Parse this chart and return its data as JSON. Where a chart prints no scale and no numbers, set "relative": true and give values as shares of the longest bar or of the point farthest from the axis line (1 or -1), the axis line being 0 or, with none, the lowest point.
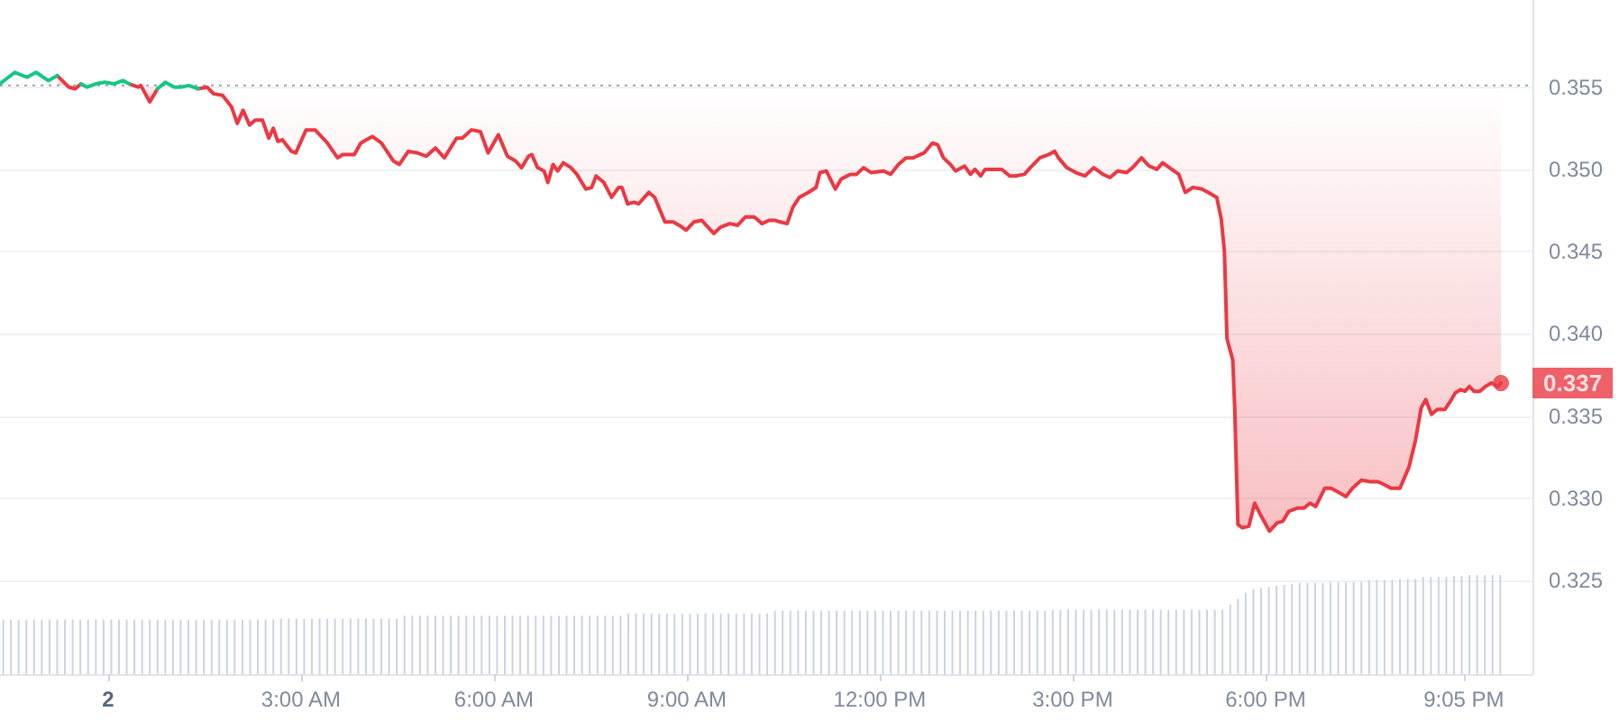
{
  "chart_data": [
    {
      "type": "line",
      "series": [
        {
          "color": "#ea3943",
          "x": [
            -0.79,
            -0.61,
            -0.51,
            -0.42,
            -0.33,
            0.33,
            0.47,
            0.51,
            0.65,
            0.77,
            0.89,
            1.4,
            1.54,
            1.64,
            1.78,
            1.92,
            2.01,
            2.1,
            2.2,
            2.29,
            2.4,
            2.5,
            2.57,
            2.64,
            2.71,
            2.85,
            2.92,
            3.08,
            3.22,
            3.41,
            3.57,
            3.65,
            3.83,
            3.93,
            4.02,
            4.11,
            4.25,
            4.44,
            4.53,
            4.67,
            4.81,
            4.95,
            5.09,
            5.23,
            5.42,
            5.51,
            5.65,
            5.79,
            5.91,
            6.07,
            6.21,
            6.34,
            6.43,
            6.54,
            6.59,
            6.68,
            6.78,
            6.84,
            6.92,
            6.99,
            7.08,
            7.2,
            7.29,
            7.43,
            7.52,
            7.59,
            7.71,
            7.83,
            7.94,
            7.99,
            8.08,
            8.18,
            8.25,
            8.41,
            8.5,
            8.66,
            8.79,
            8.88,
            8.99,
            9.11,
            9.23,
            9.42,
            9.53,
            9.67,
            9.79,
            9.91,
            10.05,
            10.17,
            10.28,
            10.37,
            10.45,
            10.56,
            10.65,
            10.75,
            10.89,
            11.01,
            11.07,
            11.17,
            11.31,
            11.4,
            11.54,
            11.64,
            11.75,
            11.87,
            12.06,
            12.17,
            12.29,
            12.41,
            12.52,
            12.69,
            12.82,
            12.9,
            12.99,
            13.1,
            13.18,
            13.32,
            13.41,
            13.48,
            13.57,
            13.64,
            13.78,
            13.9,
            14.02,
            14.11,
            14.25,
            14.34,
            14.49,
            14.63,
            14.72,
            14.78,
            14.91,
            15.05,
            15.19,
            15.33,
            15.47,
            15.58,
            15.7,
            15.84,
            15.93,
            16.07,
            16.19,
            16.31,
            16.4,
            16.54,
            16.65,
            16.75,
            16.87,
            17.01,
            17.15,
            17.24,
            17.31,
            17.36,
            17.4,
            17.49,
            17.52,
            17.57,
            17.64,
            17.74,
            17.83,
            17.92,
            18.06,
            18.18,
            18.27,
            18.36,
            18.5,
            18.6,
            18.69,
            18.78,
            18.92,
            19.02,
            19.16,
            19.25,
            19.35,
            19.49,
            19.63,
            19.75,
            19.86,
            19.95,
            20.09,
            20.23,
            20.33,
            20.42,
            20.49,
            20.58,
            20.67,
            20.79,
            20.89,
            20.95,
            21.03,
            21.1,
            21.17,
            21.24,
            21.33,
            21.42,
            21.51,
            21.61,
            21.66
          ],
          "values": [
            0.3557,
            0.355,
            0.3549,
            0.3552,
            null,
            0.3552,
            0.355,
            0.3551,
            0.3541,
            0.3549,
            null,
            0.3549,
            0.355,
            0.3546,
            0.3545,
            0.3538,
            0.3528,
            0.3536,
            0.3527,
            0.353,
            0.353,
            0.3519,
            0.3525,
            0.3517,
            0.3518,
            0.3511,
            0.351,
            0.3524,
            0.3524,
            0.3516,
            0.3507,
            0.3509,
            0.3509,
            0.3516,
            0.3518,
            0.352,
            0.3516,
            0.3505,
            0.3503,
            0.3511,
            0.351,
            0.3508,
            0.3513,
            0.3507,
            0.3519,
            0.3519,
            0.3524,
            0.3523,
            0.351,
            0.3521,
            0.3508,
            0.3505,
            0.3501,
            0.3508,
            0.3509,
            0.3501,
            0.3499,
            0.3492,
            0.3503,
            0.3499,
            0.3504,
            0.3501,
            0.3497,
            0.3488,
            0.3489,
            0.3496,
            0.3492,
            0.3483,
            0.3489,
            0.3489,
            0.3479,
            0.348,
            0.3479,
            0.3486,
            0.3483,
            0.3468,
            0.3468,
            0.3466,
            0.3463,
            0.3468,
            0.3469,
            0.3461,
            0.3465,
            0.3467,
            0.3466,
            0.3471,
            0.3471,
            0.3467,
            0.3469,
            0.3469,
            0.3468,
            0.3467,
            0.3477,
            0.3483,
            0.3486,
            0.3489,
            0.3498,
            0.3499,
            0.3488,
            0.3494,
            0.3497,
            0.3497,
            0.3501,
            0.3498,
            0.3499,
            0.3497,
            0.3503,
            0.3507,
            0.3507,
            0.351,
            0.3516,
            0.3515,
            0.3507,
            0.3503,
            0.3499,
            0.3502,
            0.3497,
            0.35,
            0.3496,
            0.35,
            0.35,
            0.35,
            0.3496,
            0.3496,
            0.3497,
            0.3501,
            0.3507,
            0.3509,
            0.3511,
            0.3507,
            0.3501,
            0.3498,
            0.3496,
            0.3501,
            0.3497,
            0.3495,
            0.3499,
            0.3498,
            0.3501,
            0.3507,
            0.3502,
            0.35,
            0.3504,
            0.35,
            0.3497,
            0.3486,
            0.3489,
            0.3488,
            0.3485,
            0.3483,
            0.347,
            0.345,
            0.3397,
            0.3384,
            0.3355,
            0.3284,
            0.3282,
            0.3283,
            0.3297,
            0.329,
            0.328,
            0.3285,
            0.3286,
            0.3292,
            0.3294,
            0.3294,
            0.3297,
            0.3295,
            0.3306,
            0.3306,
            0.3303,
            0.3301,
            0.3306,
            0.3311,
            0.331,
            0.331,
            0.3308,
            0.3306,
            0.3306,
            0.3319,
            0.3335,
            0.3355,
            0.336,
            0.3351,
            0.3354,
            0.3354,
            0.336,
            0.3364,
            0.3366,
            0.3365,
            0.3368,
            0.3365,
            0.3365,
            0.3368,
            0.337,
            0.3368,
            0.337
          ],
          "lower": [
            0.3557,
            0.355,
            0.3549,
            0.3552,
            null,
            0.3552,
            0.355,
            0.3551,
            0.3541,
            0.3549,
            null,
            0.3549,
            0.355,
            0.3546,
            0.3545,
            0.3538,
            0.3528,
            0.3536,
            0.3527,
            0.353,
            0.353,
            0.3519,
            0.3525,
            0.3517,
            0.3518,
            0.3511,
            0.351,
            0.3524,
            0.3524,
            0.3516,
            0.3507,
            0.3509,
            0.3509,
            0.3516,
            0.3518,
            0.352,
            0.3516,
            0.3505,
            0.3503,
            0.3511,
            0.351,
            0.3508,
            0.3513,
            0.3507,
            0.3519,
            0.3519,
            0.3524,
            0.3523,
            0.351,
            0.3521,
            0.3508,
            0.3505,
            0.3501,
            0.3508,
            0.3509,
            0.3501,
            0.3499,
            0.3492,
            0.3503,
            0.3499,
            0.3504,
            0.3501,
            0.3497,
            0.3488,
            0.3489,
            0.3496,
            0.3492,
            0.3483,
            0.3489,
            0.3489,
            0.3479,
            0.348,
            0.3479,
            0.3486,
            0.3483,
            0.3468,
            0.3468,
            0.3466,
            0.3463,
            0.3468,
            0.3469,
            0.3461,
            0.3465,
            0.3467,
            0.3466,
            0.3471,
            0.3471,
            0.3467,
            0.3469,
            0.3469,
            0.3468,
            0.3467,
            0.3477,
            0.3483,
            0.3486,
            0.3489,
            0.3498,
            0.3499,
            0.3488,
            0.3494,
            0.3497,
            0.3497,
            0.3501,
            0.3498,
            0.3499,
            0.3497,
            0.3503,
            0.3507,
            0.3507,
            0.351,
            0.3516,
            0.3515,
            0.3507,
            0.3503,
            0.3499,
            0.3502,
            0.3497,
            0.35,
            0.3496,
            0.35,
            0.35,
            0.35,
            0.3496,
            0.3496,
            0.3497,
            0.3501,
            0.3507,
            0.3509,
            0.3511,
            0.3507,
            0.3501,
            0.3498,
            0.3496,
            0.3501,
            0.3497,
            0.3495,
            0.3499,
            0.3498,
            0.3501,
            0.3507,
            0.3502,
            0.35,
            0.3504,
            0.35,
            0.3497,
            0.3486,
            0.3489,
            0.3488,
            0.3485,
            0.3483,
            0.347,
            0.345,
            0.3397,
            0.3384,
            0.3355,
            0.3284,
            0.3282,
            0.3283,
            0.3297,
            0.329,
            0.328,
            0.3285,
            0.3286,
            0.3292,
            0.3294,
            0.3294,
            0.3297,
            0.3295,
            0.3306,
            0.3306,
            0.3303,
            0.3301,
            0.3306,
            0.3311,
            0.331,
            0.331,
            0.3308,
            0.3306,
            0.3306,
            0.3319,
            0.3335,
            0.3355,
            0.336,
            0.3351,
            0.3354,
            0.3354,
            0.336,
            0.3364,
            0.3366,
            0.3365,
            0.3368,
            0.3365,
            0.3365,
            0.3368,
            0.337,
            0.3368,
            0.337
          ],
          "upper": [
            0.3551,
            0.3551,
            0.3551,
            0.3551,
            null,
            0.3551,
            0.3551,
            0.3551,
            0.3551,
            0.3551,
            null,
            0.3551,
            0.3551,
            0.3551,
            0.3551,
            0.3551,
            0.3551,
            0.3551,
            0.3551,
            0.3551,
            0.3551,
            0.3551,
            0.3551,
            0.3551,
            0.3551,
            0.3551,
            0.3551,
            0.3551,
            0.3551,
            0.3551,
            0.3551,
            0.3551,
            0.3551,
            0.3551,
            0.3551,
            0.3551,
            0.3551,
            0.3551,
            0.3551,
            0.3551,
            0.3551,
            0.3551,
            0.3551,
            0.3551,
            0.3551,
            0.3551,
            0.3551,
            0.3551,
            0.3551,
            0.3551,
            0.3551,
            0.3551,
            0.3551,
            0.3551,
            0.3551,
            0.3551,
            0.3551,
            0.3551,
            0.3551,
            0.3551,
            0.3551,
            0.3551,
            0.3551,
            0.3551,
            0.3551,
            0.3551,
            0.3551,
            0.3551,
            0.3551,
            0.3551,
            0.3551,
            0.3551,
            0.3551,
            0.3551,
            0.3551,
            0.3551,
            0.3551,
            0.3551,
            0.3551,
            0.3551,
            0.3551,
            0.3551,
            0.3551,
            0.3551,
            0.3551,
            0.3551,
            0.3551,
            0.3551,
            0.3551,
            0.3551,
            0.3551,
            0.3551,
            0.3551,
            0.3551,
            0.3551,
            0.3551,
            0.3551,
            0.3551,
            0.3551,
            0.3551,
            0.3551,
            0.3551,
            0.3551,
            0.3551,
            0.3551,
            0.3551,
            0.3551,
            0.3551,
            0.3551,
            0.3551,
            0.3551,
            0.3551,
            0.3551,
            0.3551,
            0.3551,
            0.3551,
            0.3551,
            0.3551,
            0.3551,
            0.3551,
            0.3551,
            0.3551,
            0.3551,
            0.3551,
            0.3551,
            0.3551,
            0.3551,
            0.3551,
            0.3551,
            0.3551,
            0.3551,
            0.3551,
            0.3551,
            0.3551,
            0.3551,
            0.3551,
            0.3551,
            0.3551,
            0.3551,
            0.3551,
            0.3551,
            0.3551,
            0.3551,
            0.3551,
            0.3551,
            0.3551,
            0.3551,
            0.3551,
            0.3551,
            0.3551,
            0.3551,
            0.3551,
            0.3551,
            0.3551,
            0.3551,
            0.3551,
            0.3551,
            0.3551,
            0.3551,
            0.3551,
            0.3551,
            0.3551,
            0.3551,
            0.3551,
            0.3551,
            0.3551,
            0.3551,
            0.3551,
            0.3551,
            0.3551,
            0.3551,
            0.3551,
            0.3551,
            0.3551,
            0.3551,
            0.3551,
            0.3551,
            0.3551,
            0.3551,
            0.3551,
            0.3551,
            0.3551,
            0.3551,
            0.3551,
            0.3551,
            0.3551,
            0.3551,
            0.3551,
            0.3551,
            0.3551,
            0.3551,
            0.3551,
            0.3551,
            0.3551,
            0.3551,
            0.3551,
            0.3551
          ]
        },
        {
          "color": "#16c784",
          "x": [
            -1.68,
            -1.45,
            -1.26,
            -1.12,
            -0.93,
            -0.79,
            -0.61,
            -0.42,
            -0.33,
            -0.19,
            -0.05,
            0.09,
            0.23,
            0.33,
            0.47,
            0.77,
            0.89,
            1.03,
            1.12,
            1.26,
            1.4
          ],
          "values": [
            0.3552,
            0.3559,
            0.3556,
            0.3559,
            0.3554,
            0.3557,
            null,
            0.3552,
            0.355,
            0.3552,
            0.3553,
            0.3552,
            0.3554,
            0.3552,
            null,
            0.3549,
            0.3553,
            0.355,
            0.355,
            0.3551,
            0.3549
          ]
        },
        {
          "type": "scatter",
          "color": "#ea3943",
          "x": [
            21.66
          ],
          "values": [
            0.337
          ],
          "value_labels": [
            "0.337"
          ]
        }
      ],
      "xlim": [
        -1.68,
        22.15
      ],
      "xticks": [
        {
          "value": 0,
          "label": null
        },
        {
          "value": 3,
          "label": "3:00 AM"
        },
        {
          "value": 6,
          "label": "6:00 AM"
        },
        {
          "value": 9,
          "label": "9:00 AM"
        },
        {
          "value": 12,
          "label": "12:00 PM"
        },
        {
          "value": 15,
          "label": "3:00 PM"
        },
        {
          "value": 18,
          "label": "6:00 PM"
        },
        {
          "value": 21.083,
          "label": "9:05 PM"
        }
      ],
      "annotations": [
        "2"
      ],
      "ylim": [
        0.3193,
        0.3603
      ],
      "yticks": [
        0.325,
        {
          "value": 0.33,
          "label": "0.330"
        },
        0.335,
        {
          "value": 0.34,
          "label": "0.340"
        },
        0.345,
        {
          "value": 0.35,
          "label": "0.350"
        },
        0.355
      ],
      "ref_lines": [
        {
          "axis": "y",
          "value": 0.3551,
          "color": "#9aa3b5",
          "line_style": "dotted"
        }
      ],
      "grid": "y"
    },
    {
      "type": "bar",
      "relative": true,
      "color": "#cbd3e3",
      "x": [
        -1.63,
        -1.51,
        -1.39,
        -1.27,
        -1.15,
        -1.03,
        -0.91,
        -0.79,
        -0.67,
        -0.55,
        -0.43,
        -0.31,
        -0.19,
        -0.07,
        0.05,
        0.17,
        0.29,
        0.41,
        0.53,
        0.65,
        0.77,
        0.89,
        1.01,
        1.13,
        1.25,
        1.37,
        1.49,
        1.61,
        1.73,
        1.85,
        1.97,
        2.09,
        2.21,
        2.33,
        2.45,
        2.57,
        2.69,
        2.81,
        2.93,
        3.05,
        3.17,
        3.29,
        3.41,
        3.53,
        3.65,
        3.77,
        3.89,
        4.01,
        4.13,
        4.25,
        4.37,
        4.49,
        4.61,
        4.73,
        4.85,
        4.97,
        5.09,
        5.21,
        5.33,
        5.45,
        5.57,
        5.69,
        5.81,
        5.93,
        6.05,
        6.17,
        6.29,
        6.41,
        6.53,
        6.65,
        6.77,
        6.89,
        7.01,
        7.13,
        7.25,
        7.37,
        7.49,
        7.61,
        7.73,
        7.85,
        7.97,
        8.09,
        8.21,
        8.33,
        8.45,
        8.57,
        8.69,
        8.81,
        8.93,
        9.05,
        9.17,
        9.29,
        9.41,
        9.53,
        9.65,
        9.77,
        9.89,
        10.01,
        10.13,
        10.25,
        10.37,
        10.49,
        10.61,
        10.73,
        10.85,
        10.97,
        11.09,
        11.21,
        11.33,
        11.45,
        11.57,
        11.69,
        11.81,
        11.93,
        12.05,
        12.17,
        12.29,
        12.41,
        12.53,
        12.65,
        12.77,
        12.89,
        13.01,
        13.13,
        13.25,
        13.37,
        13.49,
        13.61,
        13.73,
        13.85,
        13.97,
        14.09,
        14.21,
        14.33,
        14.45,
        14.57,
        14.69,
        14.81,
        14.93,
        15.05,
        15.17,
        15.29,
        15.41,
        15.53,
        15.65,
        15.77,
        15.89,
        16.01,
        16.13,
        16.25,
        16.37,
        16.49,
        16.61,
        16.73,
        16.85,
        16.97,
        17.09,
        17.21,
        17.33,
        17.45,
        17.57,
        17.69,
        17.81,
        17.93,
        18.05,
        18.17,
        18.29,
        18.41,
        18.53,
        18.65,
        18.77,
        18.89,
        19.01,
        19.13,
        19.25,
        19.37,
        19.49,
        19.61,
        19.73,
        19.85,
        19.97,
        20.09,
        20.21,
        20.33,
        20.45,
        20.57,
        20.69,
        20.81,
        20.93,
        21.05,
        21.17,
        21.29,
        21.41,
        21.53,
        21.65
      ],
      "values": [
        0.55,
        0.55,
        0.55,
        0.55,
        0.55,
        0.55,
        0.55,
        0.55,
        0.55,
        0.55,
        0.55,
        0.55,
        0.55,
        0.55,
        0.55,
        0.55,
        0.55,
        0.55,
        0.55,
        0.55,
        0.55,
        0.55,
        0.55,
        0.55,
        0.55,
        0.55,
        0.55,
        0.55,
        0.55,
        0.55,
        0.55,
        0.55,
        0.55,
        0.55,
        0.55,
        0.55,
        0.56,
        0.56,
        0.56,
        0.56,
        0.56,
        0.56,
        0.56,
        0.56,
        0.56,
        0.56,
        0.56,
        0.56,
        0.56,
        0.56,
        0.56,
        0.56,
        0.59,
        0.59,
        0.59,
        0.59,
        0.59,
        0.59,
        0.59,
        0.59,
        0.59,
        0.59,
        0.59,
        0.59,
        0.59,
        0.59,
        0.59,
        0.59,
        0.59,
        0.59,
        0.59,
        0.59,
        0.59,
        0.59,
        0.59,
        0.59,
        0.59,
        0.59,
        0.59,
        0.59,
        0.59,
        0.61,
        0.61,
        0.61,
        0.61,
        0.61,
        0.61,
        0.61,
        0.61,
        0.61,
        0.61,
        0.61,
        0.61,
        0.61,
        0.61,
        0.61,
        0.61,
        0.61,
        0.61,
        0.61,
        0.64,
        0.64,
        0.64,
        0.64,
        0.64,
        0.64,
        0.64,
        0.64,
        0.64,
        0.64,
        0.64,
        0.64,
        0.64,
        0.64,
        0.64,
        0.64,
        0.64,
        0.64,
        0.64,
        0.64,
        0.64,
        0.64,
        0.64,
        0.64,
        0.64,
        0.64,
        0.64,
        0.64,
        0.64,
        0.64,
        0.64,
        0.64,
        0.64,
        0.64,
        0.64,
        0.64,
        0.65,
        0.65,
        0.65,
        0.65,
        0.65,
        0.65,
        0.65,
        0.65,
        0.65,
        0.65,
        0.65,
        0.65,
        0.65,
        0.65,
        0.65,
        0.65,
        0.65,
        0.65,
        0.65,
        0.65,
        0.65,
        0.65,
        0.65,
        0.7,
        0.76,
        0.82,
        0.86,
        0.87,
        0.88,
        0.89,
        0.9,
        0.91,
        0.92,
        0.92,
        0.92,
        0.92,
        0.93,
        0.93,
        0.93,
        0.93,
        0.93,
        0.95,
        0.95,
        0.95,
        0.95,
        0.96,
        0.96,
        0.96,
        0.98,
        0.98,
        0.98,
        0.98,
        0.99,
        0.99,
        1,
        1,
        1,
        1,
        1
      ],
      "xlim": [
        -1.68,
        22.15
      ],
      "tick_labels": false
    }
  ]
}
